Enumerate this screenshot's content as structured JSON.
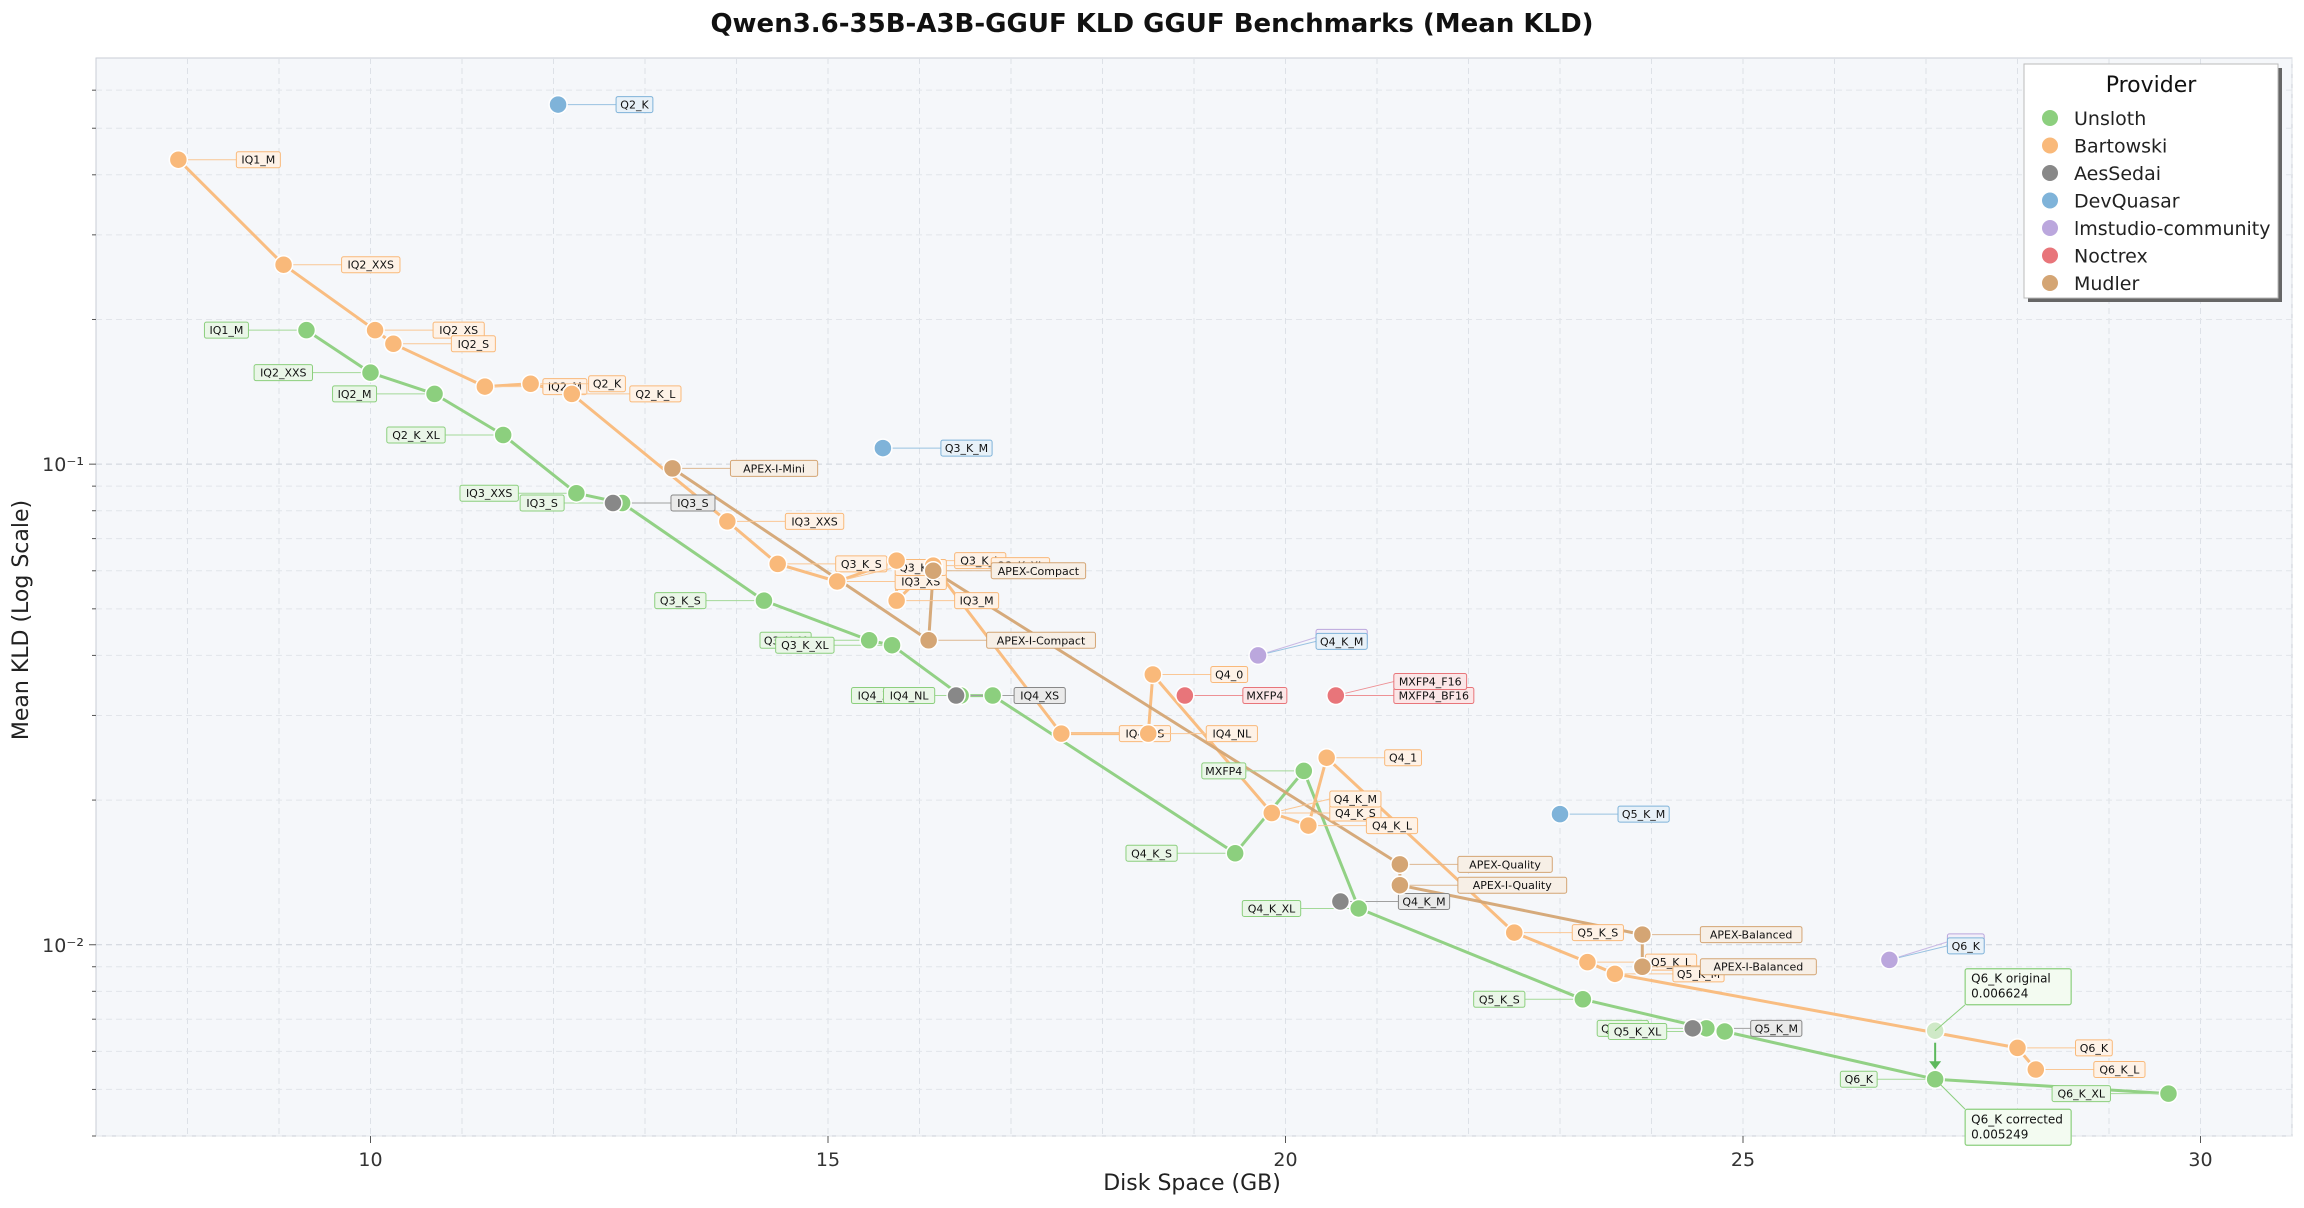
{
  "chart_data": {
    "type": "scatter",
    "title": "Qwen3.6-35B-A3B-GGUF KLD GGUF Benchmarks (Mean KLD)",
    "xlabel": "Disk Space (GB)",
    "ylabel": "Mean KLD (Log Scale)",
    "xlim": [
      7,
      31
    ],
    "ylim": [
      0.004,
      0.7
    ],
    "yscale": "log",
    "grid": true,
    "legend": {
      "title": "Provider",
      "placement": "top-right"
    },
    "x_ticks": [
      10,
      15,
      20,
      25,
      30
    ],
    "x_tick_labels": [
      "10",
      "15",
      "20",
      "25",
      "30"
    ],
    "y_ticks": [
      0.01,
      0.1
    ],
    "y_tick_labels": [
      "10⁻²",
      "10⁻¹"
    ],
    "series": [
      {
        "name": "Unsloth",
        "color": "#8ccf7e",
        "connected": true,
        "points": [
          {
            "x": 9.3,
            "y": 0.19,
            "label": "IQ1_M"
          },
          {
            "x": 10.0,
            "y": 0.155,
            "label": "IQ2_XXS"
          },
          {
            "x": 10.7,
            "y": 0.14,
            "label": "IQ2_M"
          },
          {
            "x": 11.45,
            "y": 0.115,
            "label": "Q2_K_XL"
          },
          {
            "x": 12.25,
            "y": 0.087,
            "label": "IQ3_XXS"
          },
          {
            "x": 12.75,
            "y": 0.083,
            "label": "IQ3_S"
          },
          {
            "x": 14.3,
            "y": 0.052,
            "label": "Q3_K_S"
          },
          {
            "x": 15.45,
            "y": 0.043,
            "label": "Q3_K_M"
          },
          {
            "x": 15.7,
            "y": 0.042,
            "label": "Q3_K_XL"
          },
          {
            "x": 16.45,
            "y": 0.033,
            "label": "IQ4_XS"
          },
          {
            "x": 16.8,
            "y": 0.033,
            "label": "IQ4_NL"
          },
          {
            "x": 19.45,
            "y": 0.0155,
            "label": "Q4_K_S"
          },
          {
            "x": 20.2,
            "y": 0.023,
            "label": "MXFP4"
          },
          {
            "x": 20.8,
            "y": 0.0119,
            "label": "Q4_K_XL"
          },
          {
            "x": 23.25,
            "y": 0.0077,
            "label": "Q5_K_S"
          },
          {
            "x": 24.6,
            "y": 0.0067,
            "label": "Q5_K_M"
          },
          {
            "x": 24.8,
            "y": 0.0066,
            "label": "Q5_K_XL"
          },
          {
            "x": 27.1,
            "y": 0.00525,
            "label": "Q6_K"
          },
          {
            "x": 29.65,
            "y": 0.0049,
            "label": "Q6_K_XL"
          }
        ]
      },
      {
        "name": "Bartowski",
        "color": "#f9b97a",
        "connected": true,
        "points": [
          {
            "x": 7.9,
            "y": 0.43,
            "label": "IQ1_M"
          },
          {
            "x": 9.05,
            "y": 0.26,
            "label": "IQ2_XXS"
          },
          {
            "x": 10.05,
            "y": 0.19,
            "label": "IQ2_XS"
          },
          {
            "x": 10.25,
            "y": 0.178,
            "label": "IQ2_S"
          },
          {
            "x": 11.25,
            "y": 0.145,
            "label": "IQ2_M"
          },
          {
            "x": 11.75,
            "y": 0.147,
            "label": "Q2_K"
          },
          {
            "x": 12.2,
            "y": 0.14,
            "label": "Q2_K_L"
          },
          {
            "x": 13.9,
            "y": 0.076,
            "label": "IQ3_XXS"
          },
          {
            "x": 14.45,
            "y": 0.062,
            "label": "Q3_K_S"
          },
          {
            "x": 15.1,
            "y": 0.057,
            "label": "IQ3_XS"
          },
          {
            "x": 15.75,
            "y": 0.063,
            "label": "Q3_K_L"
          },
          {
            "x": 15.75,
            "y": 0.052,
            "label": "IQ3_M"
          },
          {
            "x": 16.15,
            "y": 0.0615,
            "label": "Q3_K_XL"
          },
          {
            "x": 17.55,
            "y": 0.0275,
            "label": "IQ4_XS"
          },
          {
            "x": 18.5,
            "y": 0.0275,
            "label": "IQ4_NL"
          },
          {
            "x": 18.55,
            "y": 0.0365,
            "label": "Q4_0"
          },
          {
            "x": 19.85,
            "y": 0.0188,
            "label": "Q4_K_S"
          },
          {
            "x": 20.25,
            "y": 0.0177,
            "label": "Q4_K_L"
          },
          {
            "x": 20.45,
            "y": 0.0245,
            "label": "Q4_1"
          },
          {
            "x": 22.5,
            "y": 0.0106,
            "label": "Q5_K_S"
          },
          {
            "x": 23.3,
            "y": 0.0092,
            "label": "Q5_K_L"
          },
          {
            "x": 23.6,
            "y": 0.0087,
            "label": "Q5_K_M"
          },
          {
            "x": 28.0,
            "y": 0.0061,
            "label": "Q6_K"
          },
          {
            "x": 28.2,
            "y": 0.0055,
            "label": "Q6_K_L"
          }
        ]
      },
      {
        "name": "AesSedai",
        "color": "#888888",
        "connected": false,
        "points": [
          {
            "x": 12.65,
            "y": 0.083,
            "label": "IQ3_S"
          },
          {
            "x": 16.4,
            "y": 0.033,
            "label": "IQ4_XS"
          },
          {
            "x": 20.6,
            "y": 0.0123,
            "label": "Q4_K_M"
          },
          {
            "x": 24.45,
            "y": 0.0067,
            "label": "Q5_K_M"
          }
        ]
      },
      {
        "name": "DevQuasar",
        "color": "#7fb3d9",
        "connected": false,
        "points": [
          {
            "x": 12.05,
            "y": 0.56,
            "label": "Q2_K"
          },
          {
            "x": 15.6,
            "y": 0.108,
            "label": "Q3_K_M"
          },
          {
            "x": 23.0,
            "y": 0.0187,
            "label": "Q5_K_M"
          }
        ]
      },
      {
        "name": "lmstudio-community",
        "color": "#bba7dd",
        "connected": false,
        "points": [
          {
            "x": 19.7,
            "y": 0.04,
            "label": "Q4_K_M"
          },
          {
            "x": 26.6,
            "y": 0.0093,
            "label": "Q6_K"
          }
        ]
      },
      {
        "name": "Noctrex",
        "color": "#e8757a",
        "connected": false,
        "points": [
          {
            "x": 18.9,
            "y": 0.033,
            "label": "MXFP4"
          },
          {
            "x": 20.55,
            "y": 0.033,
            "label": "MXFP4_BF16"
          }
        ]
      },
      {
        "name": "Mudler",
        "color": "#d4a574",
        "connected": true,
        "points": [
          {
            "x": 13.3,
            "y": 0.098,
            "label": "APEX-I-Mini"
          },
          {
            "x": 16.15,
            "y": 0.06,
            "label": "APEX-Compact"
          },
          {
            "x": 16.1,
            "y": 0.043,
            "label": "APEX-I-Compact"
          },
          {
            "x": 21.25,
            "y": 0.0147,
            "label": "APEX-Quality"
          },
          {
            "x": 21.25,
            "y": 0.0133,
            "label": "APEX-I-Quality"
          },
          {
            "x": 23.9,
            "y": 0.0105,
            "label": "APEX-Balanced"
          },
          {
            "x": 23.9,
            "y": 0.009,
            "label": "APEX-I-Balanced"
          }
        ]
      }
    ],
    "extra_labels": [
      {
        "series": "Bartowski",
        "x": 15.1,
        "y": 0.057,
        "label": "Q3_K_M"
      },
      {
        "series": "Bartowski",
        "x": 19.85,
        "y": 0.0188,
        "label": "Q4_K_M"
      },
      {
        "series": "DevQuasar",
        "x": 19.7,
        "y": 0.04,
        "label": "Q4_K_M"
      },
      {
        "series": "DevQuasar",
        "x": 26.6,
        "y": 0.0093,
        "label": "Q6_K"
      },
      {
        "series": "Noctrex",
        "x": 20.55,
        "y": 0.033,
        "label": "MXFP4_F16"
      }
    ],
    "annotations": [
      {
        "x": 27.1,
        "y": 0.006624,
        "text": "Q6_K original\n0.006624"
      },
      {
        "x": 27.1,
        "y": 0.005249,
        "text": "Q6_K corrected\n0.005249"
      }
    ],
    "ghost_point": {
      "x": 27.1,
      "y": 0.006624
    }
  }
}
